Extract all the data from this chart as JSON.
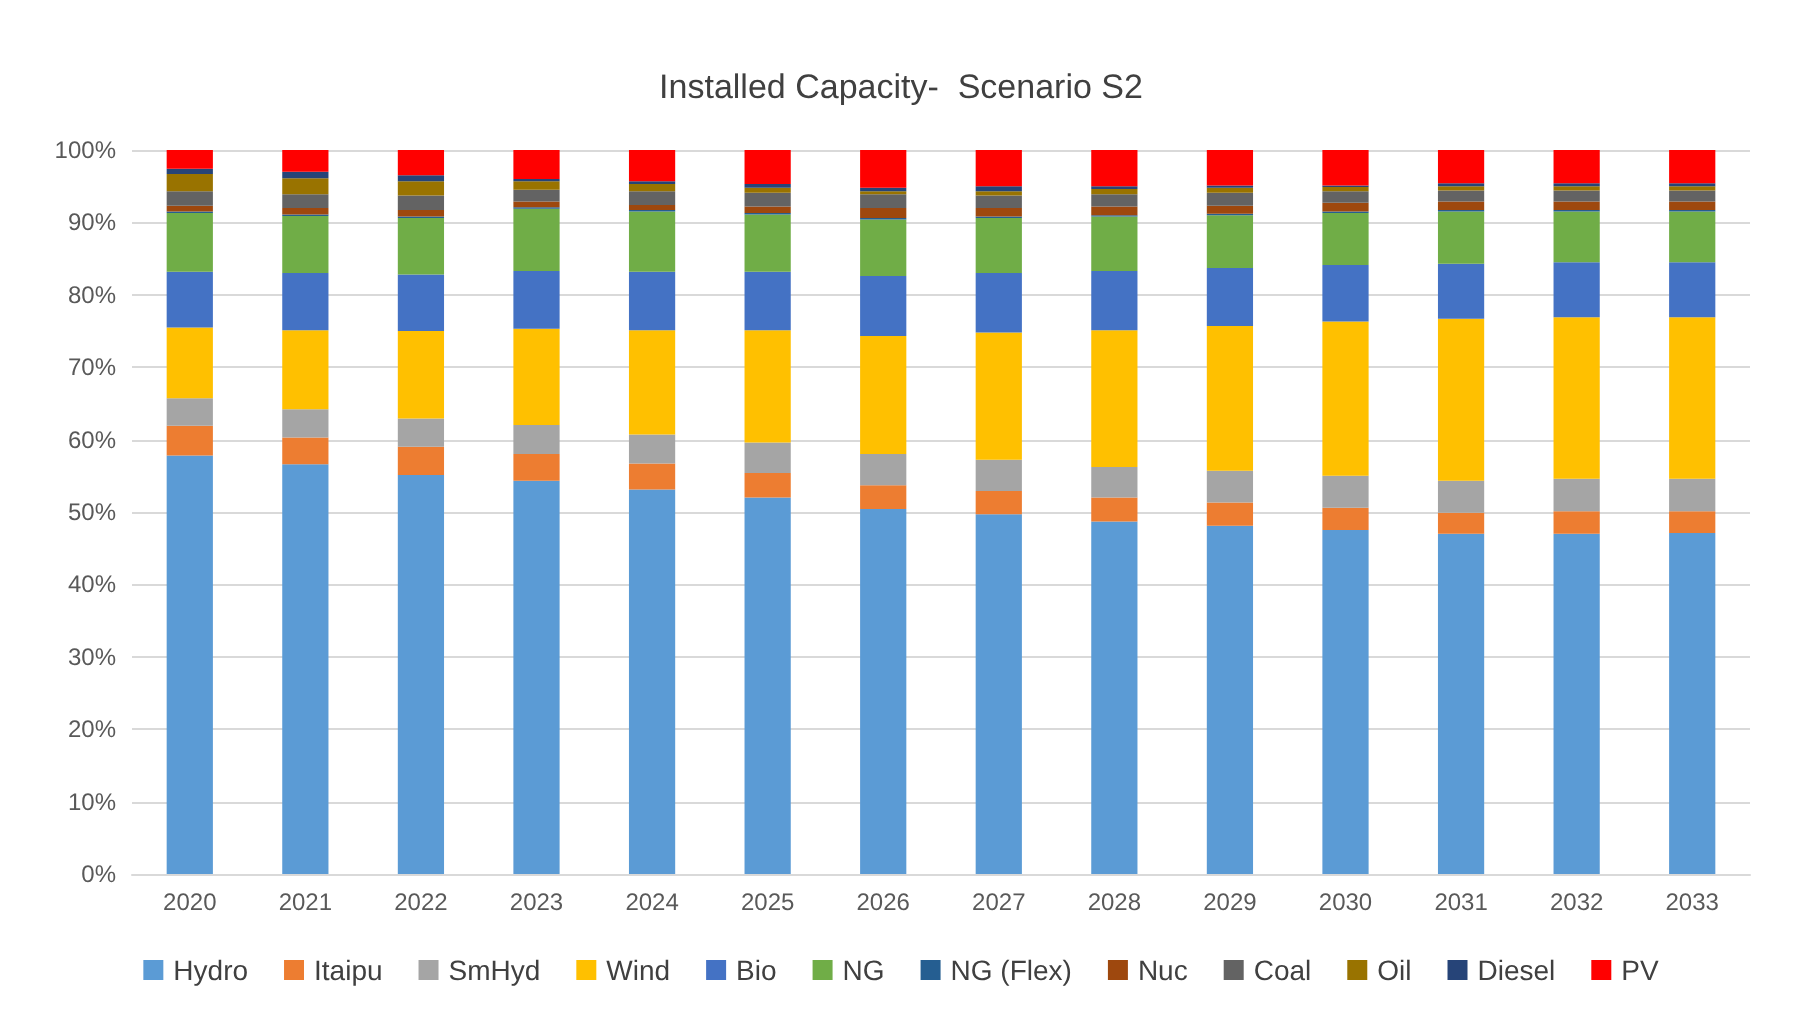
{
  "chart_data": {
    "type": "bar",
    "title": "Installed Capacity-  Scenario S2",
    "stacked": true,
    "grid": "y",
    "legend": "bottom",
    "categories": [
      "2020",
      "2021",
      "2022",
      "2023",
      "2024",
      "2025",
      "2026",
      "2027",
      "2028",
      "2029",
      "2030",
      "2031",
      "2032",
      "2033"
    ],
    "ylim": [
      0,
      100
    ],
    "yticks": [
      {
        "value": 0,
        "label": "0%"
      },
      {
        "value": 10,
        "label": "10%"
      },
      {
        "value": 20,
        "label": "20%"
      },
      {
        "value": 30,
        "label": "30%"
      },
      {
        "value": 40,
        "label": "40%"
      },
      {
        "value": 50,
        "label": "50%"
      },
      {
        "value": 60,
        "label": "60%"
      },
      {
        "value": 70,
        "label": "70%"
      },
      {
        "value": 80,
        "label": "80%"
      },
      {
        "value": 90,
        "label": "90%"
      },
      {
        "value": 100,
        "label": "100%"
      }
    ],
    "series": [
      {
        "name": "Hydro",
        "color": "#5b9bd5",
        "values": [
          57.8,
          56.6,
          55.1,
          54.3,
          53.1,
          52.0,
          50.4,
          49.7,
          48.7,
          48.1,
          47.5,
          47.0,
          47.0,
          47.1
        ]
      },
      {
        "name": "Itaipu",
        "color": "#ed7d31",
        "values": [
          4.1,
          3.7,
          3.9,
          3.7,
          3.6,
          3.4,
          3.3,
          3.2,
          3.3,
          3.2,
          3.1,
          2.9,
          3.1,
          3.0
        ]
      },
      {
        "name": "SmHyd",
        "color": "#a5a5a5",
        "values": [
          3.8,
          3.9,
          3.9,
          4.0,
          4.0,
          4.2,
          4.3,
          4.3,
          4.2,
          4.4,
          4.4,
          4.4,
          4.5,
          4.5
        ]
      },
      {
        "name": "Wind",
        "color": "#ffc000",
        "values": [
          9.8,
          10.9,
          12.1,
          13.3,
          14.4,
          15.5,
          16.3,
          17.6,
          18.9,
          20.0,
          21.3,
          22.4,
          22.3,
          22.3
        ]
      },
      {
        "name": "Bio",
        "color": "#4472c4",
        "values": [
          7.7,
          7.9,
          7.8,
          8.0,
          8.1,
          8.1,
          8.3,
          8.2,
          8.2,
          8.0,
          7.8,
          7.6,
          7.6,
          7.6
        ]
      },
      {
        "name": "NG",
        "color": "#70ad47",
        "values": [
          8.1,
          7.9,
          7.8,
          8.6,
          8.3,
          7.9,
          7.8,
          7.6,
          7.5,
          7.3,
          7.2,
          7.2,
          7.0,
          7.0
        ]
      },
      {
        "name": "NG (Flex)",
        "color": "#255e91",
        "values": [
          0.2,
          0.2,
          0.2,
          0.2,
          0.2,
          0.2,
          0.2,
          0.2,
          0.2,
          0.2,
          0.2,
          0.2,
          0.2,
          0.2
        ]
      },
      {
        "name": "Nuc",
        "color": "#9e480e",
        "values": [
          0.8,
          0.9,
          0.9,
          0.8,
          0.7,
          0.9,
          1.4,
          1.2,
          1.2,
          1.1,
          1.2,
          1.2,
          1.2,
          1.2
        ]
      },
      {
        "name": "Coal",
        "color": "#636363",
        "values": [
          2.0,
          1.9,
          2.0,
          1.6,
          1.9,
          1.9,
          1.9,
          1.7,
          1.7,
          1.8,
          1.6,
          1.5,
          1.5,
          1.5
        ]
      },
      {
        "name": "Oil",
        "color": "#997300",
        "values": [
          2.4,
          2.2,
          2.0,
          1.2,
          1.0,
          0.7,
          0.4,
          0.6,
          0.7,
          0.7,
          0.6,
          0.6,
          0.6,
          0.6
        ]
      },
      {
        "name": "Diesel",
        "color": "#264478",
        "values": [
          0.7,
          0.9,
          0.8,
          0.3,
          0.4,
          0.5,
          0.5,
          0.7,
          0.4,
          0.3,
          0.2,
          0.4,
          0.4,
          0.4
        ]
      },
      {
        "name": "PV",
        "color": "#ff0000",
        "values": [
          2.6,
          3.0,
          3.5,
          4.0,
          4.3,
          4.7,
          5.2,
          5.0,
          5.0,
          4.9,
          4.9,
          4.6,
          4.6,
          4.6
        ]
      }
    ]
  }
}
